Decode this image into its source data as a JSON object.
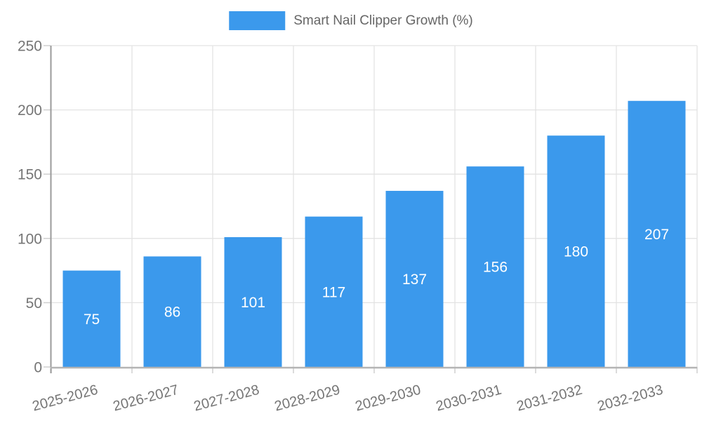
{
  "chart_data": {
    "type": "bar",
    "title": "",
    "series_name": "Smart Nail Clipper Growth (%)",
    "categories": [
      "2025-2026",
      "2026-2027",
      "2027-2028",
      "2028-2029",
      "2029-2030",
      "2030-2031",
      "2031-2032",
      "2032-2033"
    ],
    "values": [
      75,
      86,
      101,
      117,
      137,
      156,
      180,
      207
    ],
    "xlabel": "",
    "ylabel": "",
    "ylim": [
      0,
      250
    ],
    "yticks": [
      0,
      50,
      100,
      150,
      200,
      250
    ],
    "grid": true,
    "legend_position": "top-center",
    "value_labels": "inside-center",
    "colors": {
      "bar": "#3b99ec",
      "grid": "#e3e3e3",
      "axis_line": "#9a9a9a",
      "baseline": "#b4b4b4",
      "tick": "#cfcfcf",
      "tick_label": "#757575",
      "value_label": "#ffffff",
      "legend_text": "#666666"
    }
  }
}
